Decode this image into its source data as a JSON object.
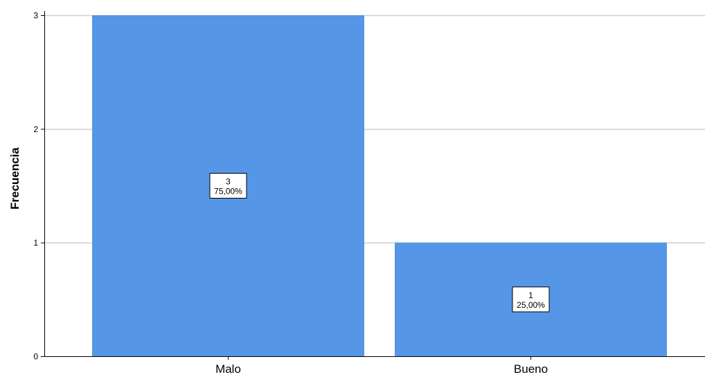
{
  "chart_data": {
    "type": "bar",
    "categories": [
      "Malo",
      "Bueno"
    ],
    "values": [
      3,
      1
    ],
    "data_labels": [
      {
        "count": "3",
        "percent": "75,00%"
      },
      {
        "count": "1",
        "percent": "25,00%"
      }
    ],
    "title": "",
    "xlabel": "",
    "ylabel": "Frecuencia",
    "ylim": [
      0,
      3
    ],
    "yticks": [
      "0",
      "1",
      "2",
      "3"
    ],
    "grid": true,
    "legend": "none",
    "colors": {
      "bar": "#5596E6",
      "grid": "#d0d0d0",
      "axis": "#000000",
      "label_box_border": "#000000",
      "label_box_fill": "#ffffff"
    }
  }
}
